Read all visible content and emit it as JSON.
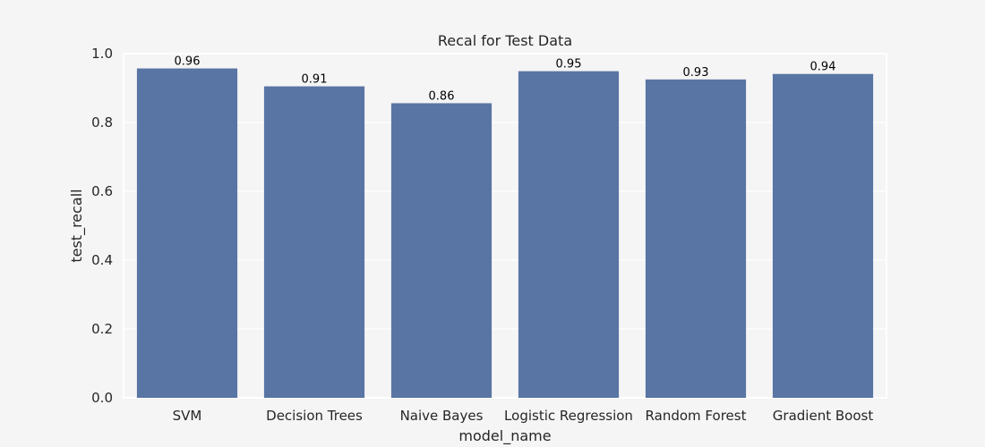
{
  "chart_data": {
    "type": "bar",
    "title": "Recal for Test Data",
    "xlabel": "model_name",
    "ylabel": "test_recall",
    "categories": [
      "SVM",
      "Decision Trees",
      "Naive Bayes",
      "Logistic Regression",
      "Random Forest",
      "Gradient Boost"
    ],
    "values": [
      0.957,
      0.905,
      0.856,
      0.949,
      0.925,
      0.941
    ],
    "data_labels": [
      "0.96",
      "0.91",
      "0.86",
      "0.95",
      "0.93",
      "0.94"
    ],
    "ylim": [
      0,
      1.0
    ],
    "yticks": [
      "0.0",
      "0.2",
      "0.4",
      "0.6",
      "0.8",
      "1.0"
    ],
    "grid": true,
    "bar_color": "#5975a4",
    "plot_background": "#f5f5f5",
    "figure_background": "#f5f5f5",
    "grid_color": "#ffffff"
  }
}
